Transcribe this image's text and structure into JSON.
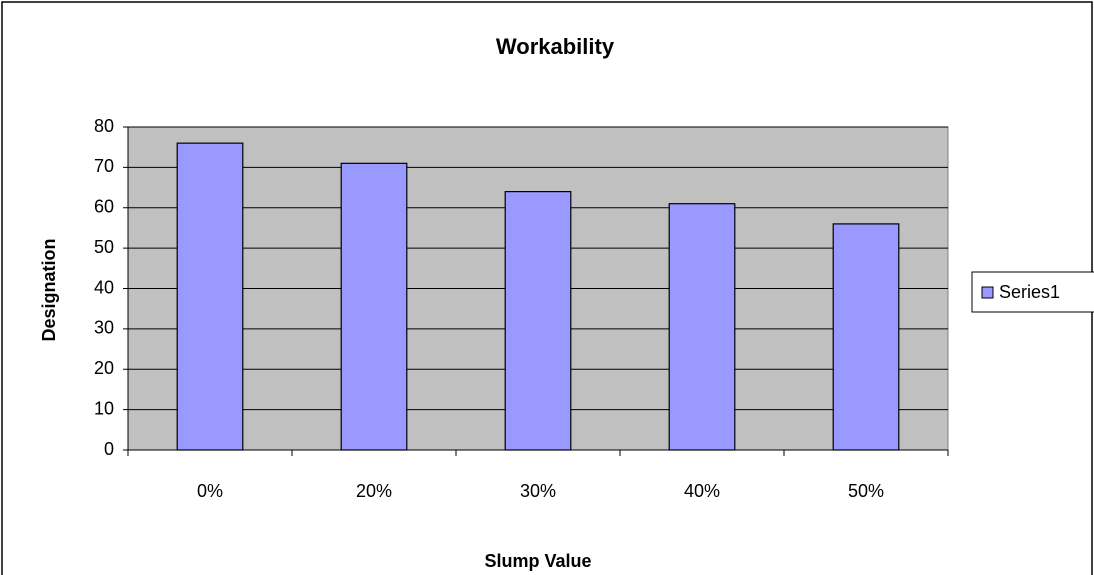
{
  "chart_data": {
    "type": "bar",
    "title": "Workability",
    "x_label": "Slump Value",
    "y_label": "Designation",
    "categories": [
      "0%",
      "20%",
      "30%",
      "40%",
      "50%"
    ],
    "series": [
      {
        "name": "Series1",
        "color": "#9999ff",
        "values": [
          76,
          71,
          64,
          61,
          56
        ]
      }
    ],
    "ylim": [
      0,
      80
    ],
    "yticks": [
      0,
      10,
      20,
      30,
      40,
      50,
      60,
      70,
      80
    ],
    "grid": true,
    "legend": "right",
    "plot_background": "#c0c0c0"
  }
}
